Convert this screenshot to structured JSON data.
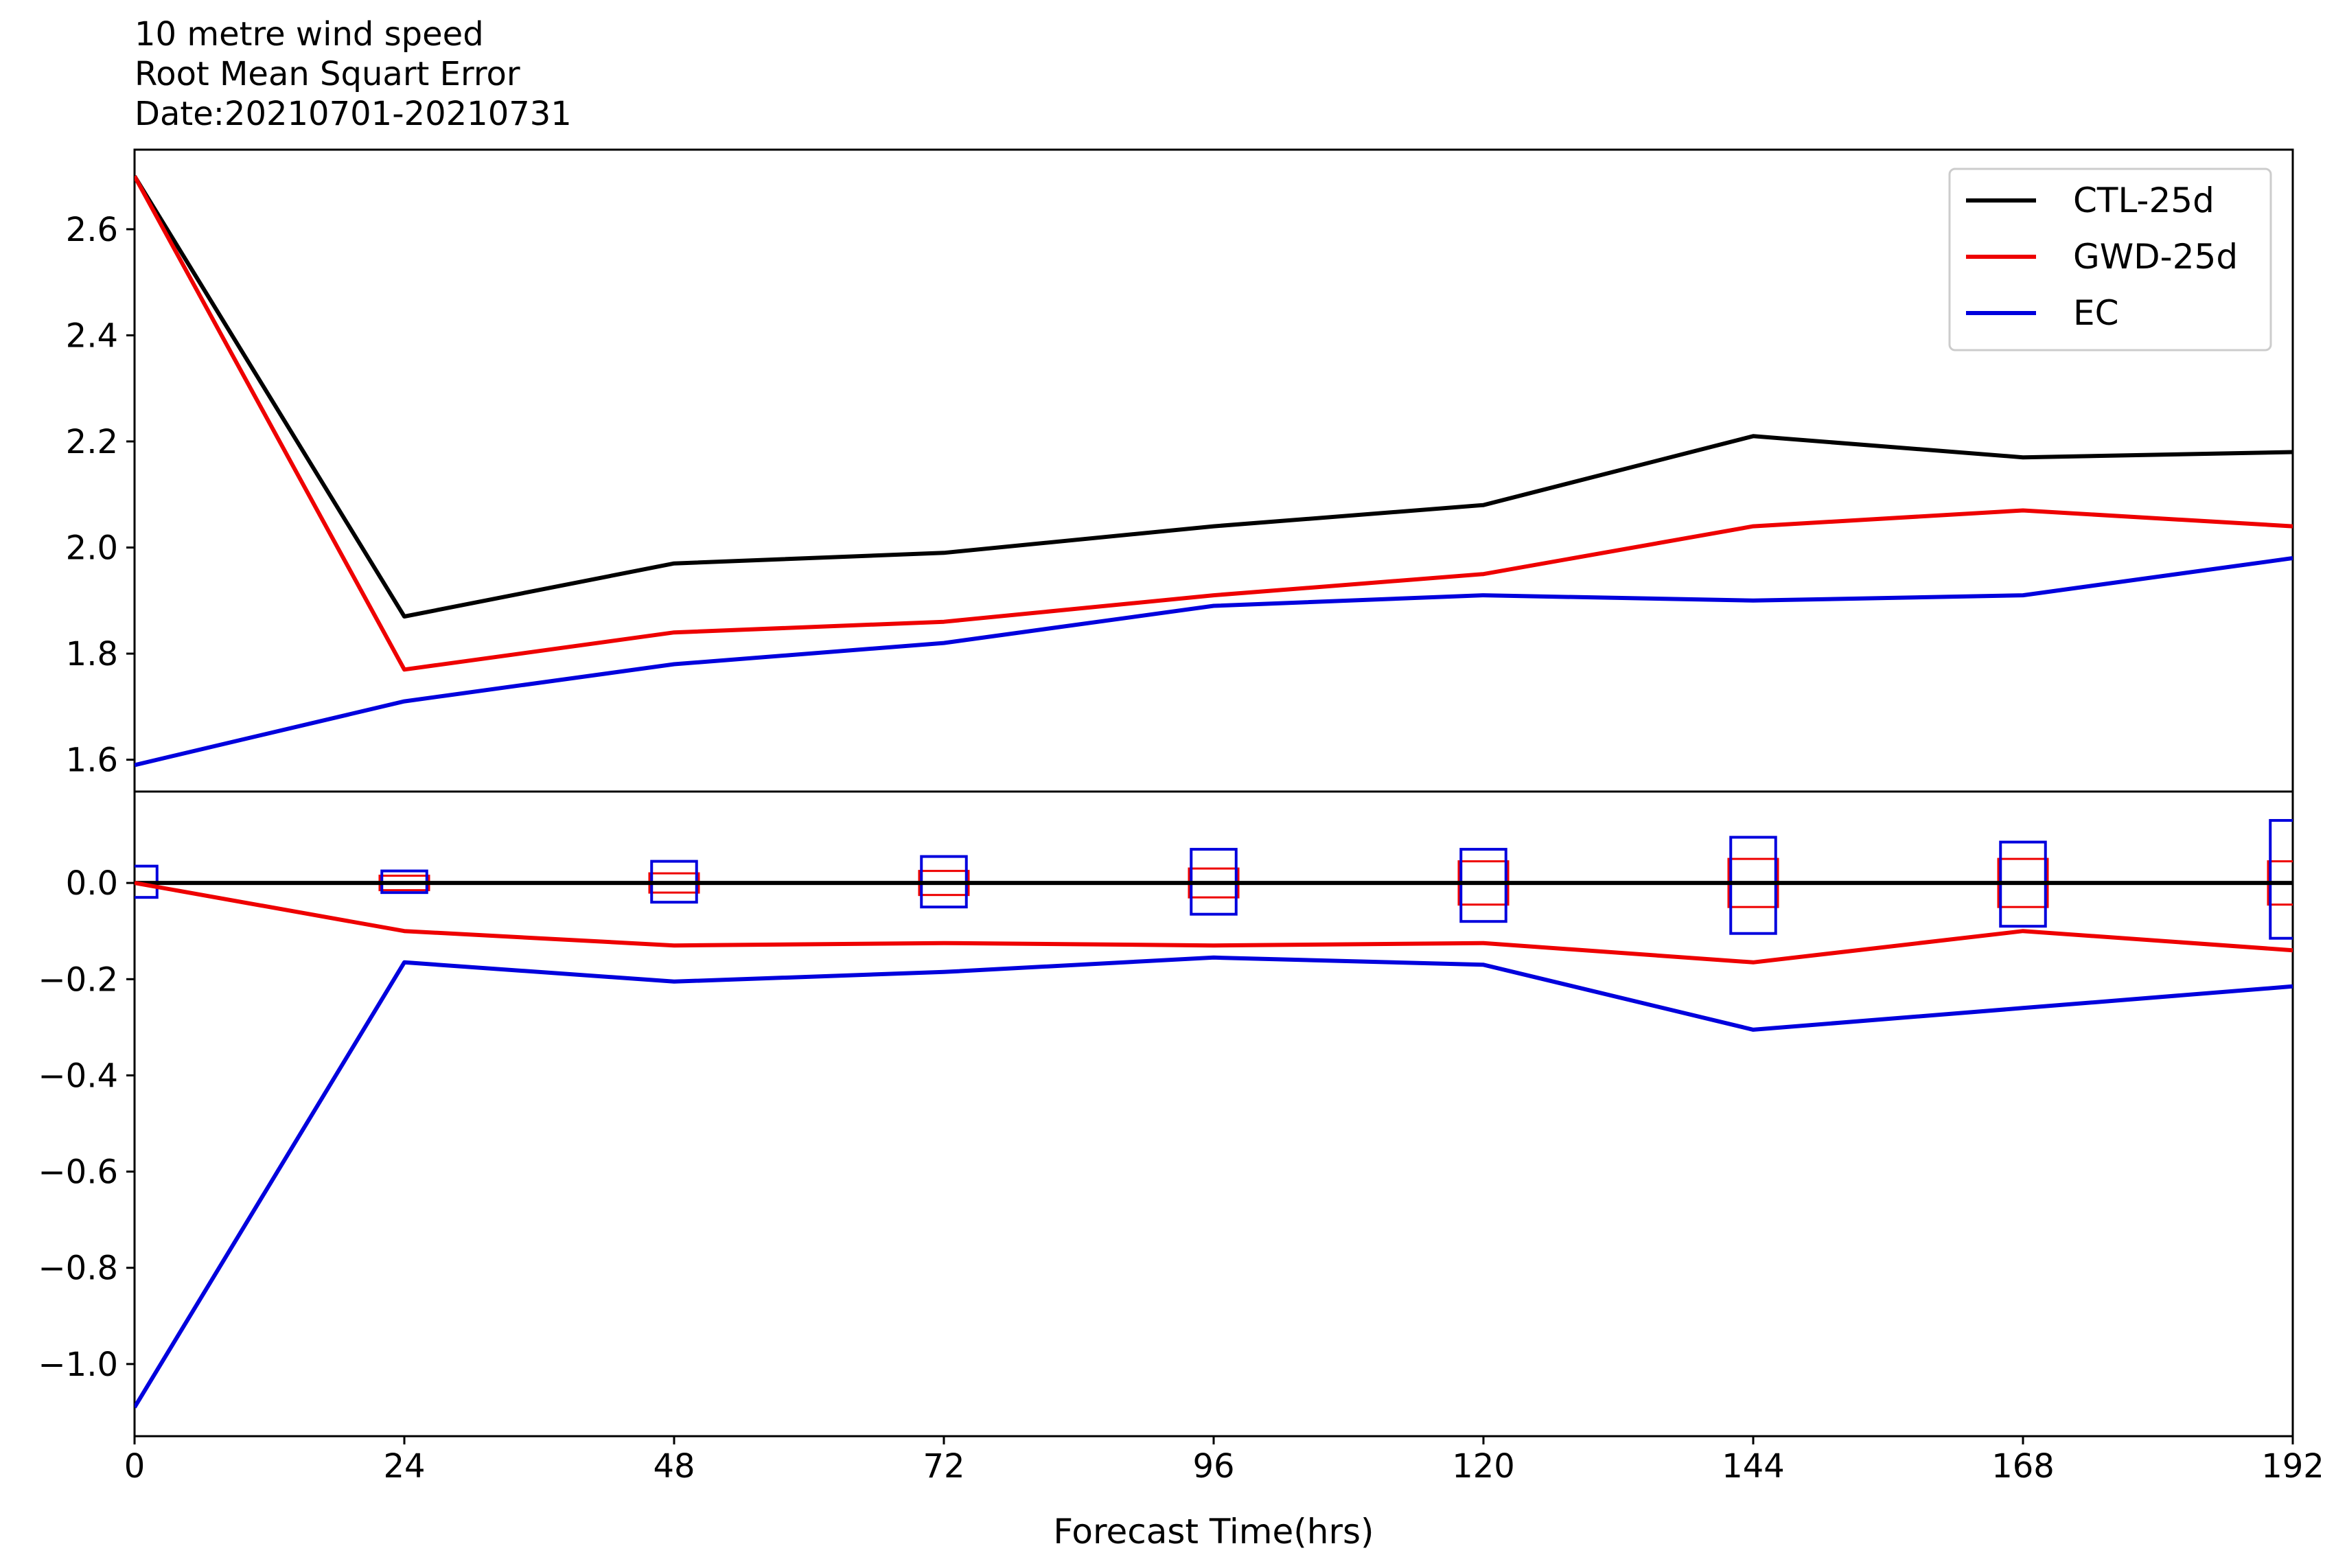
{
  "header": {
    "line1": "10 metre wind speed",
    "line2": "Root Mean Squart Error",
    "line3": "Date:20210701-20210731"
  },
  "chart_data": [
    {
      "type": "line",
      "panel": "top",
      "title": "",
      "xlabel": "",
      "ylabel": "",
      "x": [
        0,
        24,
        48,
        72,
        96,
        120,
        144,
        168,
        192
      ],
      "xlim": [
        0,
        192
      ],
      "ylim": [
        1.54,
        2.75
      ],
      "yticks": [
        "1.6",
        "1.8",
        "2.0",
        "2.2",
        "2.4",
        "2.6"
      ],
      "grid": false,
      "legend": "top-right",
      "series": [
        {
          "name": "CTL-25d",
          "color": "#000000",
          "values": [
            2.7,
            1.87,
            1.97,
            1.99,
            2.04,
            2.08,
            2.21,
            2.17,
            2.18
          ]
        },
        {
          "name": "GWD-25d",
          "color": "#ee0000",
          "values": [
            2.7,
            1.77,
            1.84,
            1.86,
            1.91,
            1.95,
            2.04,
            2.07,
            2.04
          ]
        },
        {
          "name": "EC",
          "color": "#0000dd",
          "values": [
            1.59,
            1.71,
            1.78,
            1.82,
            1.89,
            1.91,
            1.9,
            1.91,
            1.98
          ]
        }
      ]
    },
    {
      "type": "line",
      "panel": "bottom",
      "title": "",
      "xlabel": "Forecast Time(hrs)",
      "ylabel": "",
      "x": [
        0,
        24,
        48,
        72,
        96,
        120,
        144,
        168,
        192
      ],
      "xticks": [
        "0",
        "24",
        "48",
        "72",
        "96",
        "120",
        "144",
        "168",
        "192"
      ],
      "xlim": [
        0,
        192
      ],
      "ylim": [
        -1.15,
        0.19
      ],
      "yticks": [
        "0.0",
        "−0.2",
        "−0.4",
        "−0.6",
        "−0.8",
        "−1.0"
      ],
      "grid": false,
      "series": [
        {
          "name": "CTL-25d",
          "color": "#000000",
          "values": [
            0,
            0,
            0,
            0,
            0,
            0,
            0,
            0,
            0
          ]
        },
        {
          "name": "GWD-25d",
          "color": "#ee0000",
          "values": [
            0.0,
            -0.1,
            -0.13,
            -0.125,
            -0.13,
            -0.125,
            -0.165,
            -0.1,
            -0.14
          ]
        },
        {
          "name": "EC",
          "color": "#0000dd",
          "values": [
            -1.09,
            -0.165,
            -0.205,
            -0.185,
            -0.155,
            -0.17,
            -0.305,
            -0.26,
            -0.215
          ]
        }
      ],
      "boxes": {
        "EC": {
          "color": "#0000dd",
          "halfwidth_hrs": 2,
          "lower": [
            -0.03,
            -0.02,
            -0.04,
            -0.05,
            -0.065,
            -0.08,
            -0.105,
            -0.09,
            -0.115
          ],
          "upper": [
            0.035,
            0.025,
            0.045,
            0.055,
            0.07,
            0.07,
            0.095,
            0.085,
            0.13
          ]
        },
        "GWD-25d": {
          "color": "#ee0000",
          "halfwidth_hrs": 2.2,
          "lower": [
            0,
            -0.015,
            -0.02,
            -0.025,
            -0.03,
            -0.045,
            -0.05,
            -0.05,
            -0.045
          ],
          "upper": [
            0,
            0.015,
            0.02,
            0.025,
            0.03,
            0.045,
            0.05,
            0.05,
            0.045
          ]
        }
      }
    }
  ]
}
